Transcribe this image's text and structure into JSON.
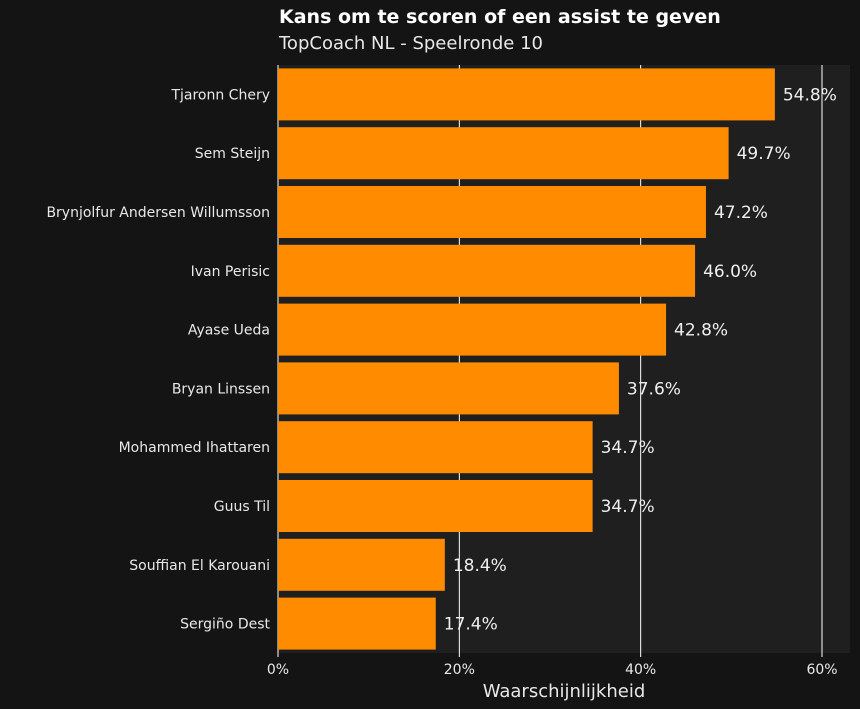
{
  "chart_data": {
    "type": "bar",
    "orientation": "horizontal",
    "title": "Kans om te scoren of een assist te geven",
    "subtitle": "TopCoach NL - Speelronde 10",
    "xlabel": "Waarschijnlijkheid",
    "ylabel": "",
    "xlim": [
      0,
      63
    ],
    "xticks": [
      0,
      20,
      40,
      60
    ],
    "xtick_labels": [
      "0%",
      "20%",
      "40%",
      "60%"
    ],
    "grid": "vertical",
    "categories": [
      "Tjaronn Chery",
      "Sem Steijn",
      "Brynjolfur Andersen Willumsson",
      "Ivan Perisic",
      "Ayase Ueda",
      "Bryan Linssen",
      "Mohammed Ihattaren",
      "Guus Til",
      "Souffian El Karouani",
      "Sergiño Dest"
    ],
    "values": [
      54.8,
      49.7,
      47.2,
      46.0,
      42.8,
      37.6,
      34.7,
      34.7,
      18.4,
      17.4
    ],
    "data_labels": [
      "54.8%",
      "49.7%",
      "47.2%",
      "46.0%",
      "42.8%",
      "37.6%",
      "34.7%",
      "34.7%",
      "18.4%",
      "17.4%"
    ],
    "colors": {
      "bar": "#ff8c00",
      "panel": "#1f1f1f",
      "background": "#141414",
      "grid": "#ffffff"
    }
  }
}
